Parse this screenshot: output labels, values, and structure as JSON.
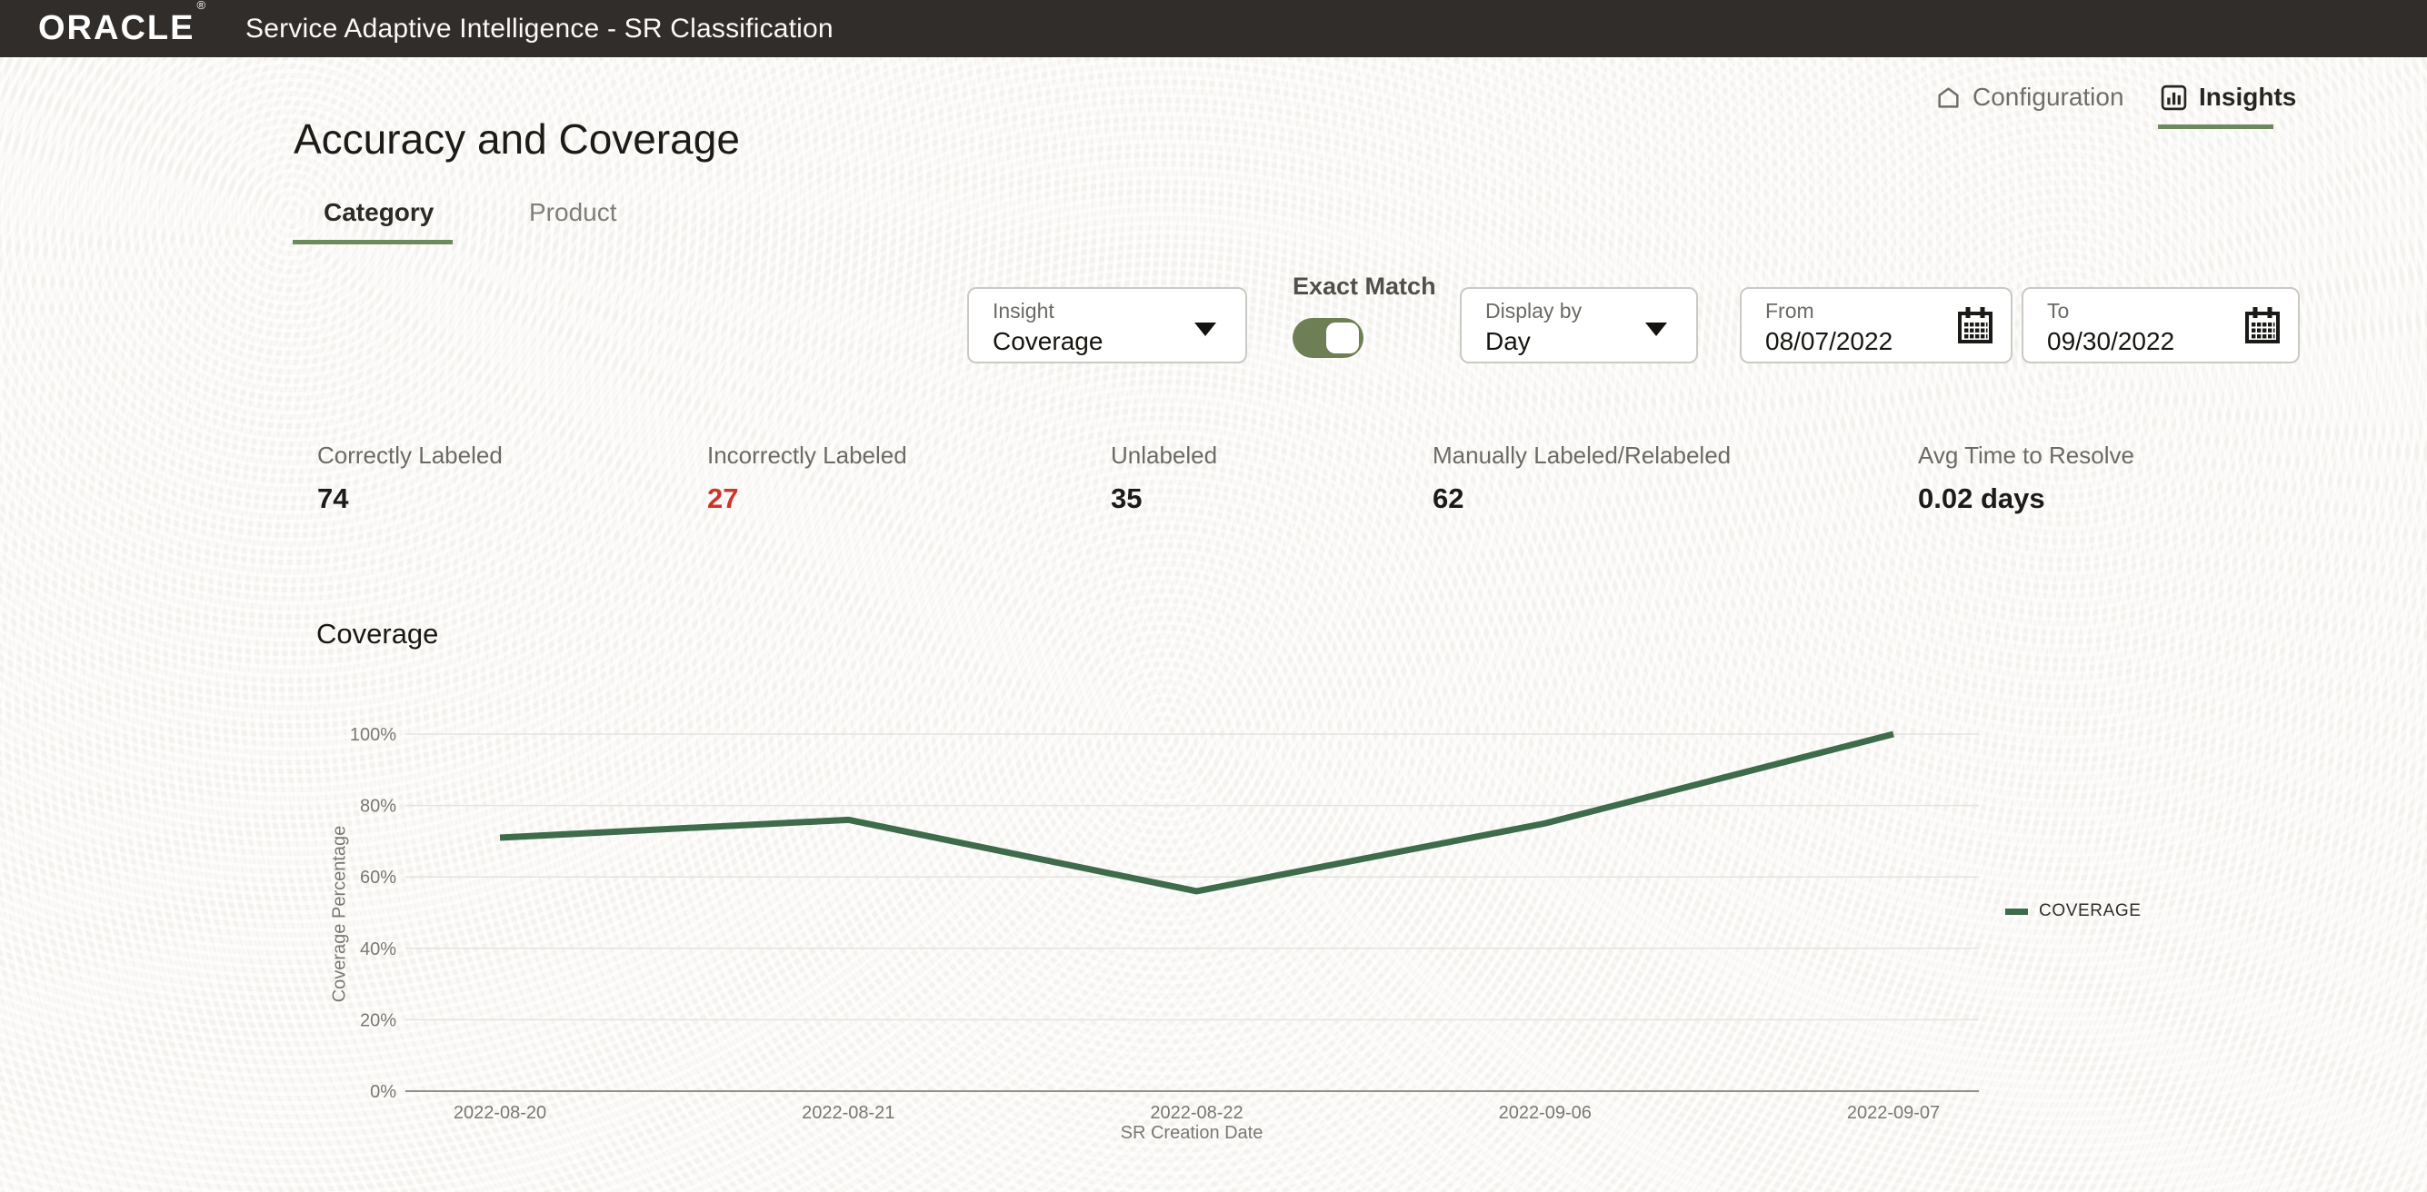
{
  "app": {
    "brand": "ORACLE",
    "registered": "®",
    "title": "Service Adaptive Intelligence - SR Classification"
  },
  "nav": {
    "configuration": "Configuration",
    "insights": "Insights"
  },
  "page": {
    "title": "Accuracy and Coverage"
  },
  "tabs": [
    {
      "label": "Category",
      "active": true
    },
    {
      "label": "Product",
      "active": false
    }
  ],
  "controls": {
    "insight": {
      "label": "Insight",
      "value": "Coverage"
    },
    "exact_match": {
      "label": "Exact Match",
      "on": true
    },
    "display_by": {
      "label": "Display by",
      "value": "Day"
    },
    "from": {
      "label": "From",
      "value": "08/07/2022"
    },
    "to": {
      "label": "To",
      "value": "09/30/2022"
    }
  },
  "stats": [
    {
      "label": "Correctly Labeled",
      "value": "74",
      "color": "#1c1b19"
    },
    {
      "label": "Incorrectly Labeled",
      "value": "27",
      "color": "#ce352a"
    },
    {
      "label": "Unlabeled",
      "value": "35",
      "color": "#1c1b19"
    },
    {
      "label": "Manually Labeled/Relabeled",
      "value": "62",
      "color": "#1c1b19"
    },
    {
      "label": "Avg Time to Resolve",
      "value": "0.02 days",
      "color": "#1c1b19"
    }
  ],
  "chart_data": {
    "type": "line",
    "title": "Coverage",
    "x": [
      "2022-08-20",
      "2022-08-21",
      "2022-08-22",
      "2022-09-06",
      "2022-09-07"
    ],
    "series": [
      {
        "name": "COVERAGE",
        "values": [
          71,
          76,
          56,
          75,
          100
        ]
      }
    ],
    "xlabel": "SR Creation Date",
    "ylabel": "Coverage Percentage",
    "ylim": [
      0,
      100
    ],
    "yticks": [
      0,
      20,
      40,
      60,
      80,
      100
    ],
    "ytick_suffix": "%",
    "grid": true,
    "legend_position": "right",
    "line_color": "#3d6b4b"
  },
  "colors": {
    "topbar": "#312d2a",
    "accent_green": "#6c8a5c",
    "toggle_green": "#6e7f55",
    "line_green": "#3d6b4b",
    "negative_red": "#ce352a"
  }
}
